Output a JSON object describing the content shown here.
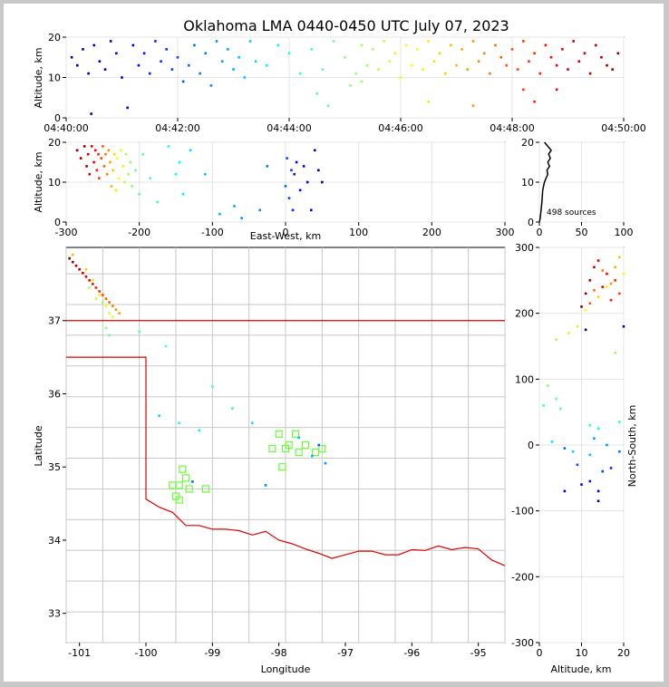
{
  "chart_data": [
    {
      "id": "time-height",
      "type": "scatter",
      "title": "Oklahoma LMA 0440-0450 UTC July 07, 2023",
      "xlabel": "",
      "ylabel": "Altitude, km",
      "x_ticks": [
        "04:40:00",
        "04:42:00",
        "04:44:00",
        "04:46:00",
        "04:48:00",
        "04:50:00"
      ],
      "x_range_minutes": [
        0,
        10
      ],
      "ylim": [
        0,
        20
      ],
      "y_ticks": [
        0,
        10,
        20
      ],
      "grid": true,
      "color_scale": "time (blue to red)",
      "points": [
        [
          0.1,
          15
        ],
        [
          0.2,
          13
        ],
        [
          0.3,
          17
        ],
        [
          0.4,
          11
        ],
        [
          0.45,
          1
        ],
        [
          0.5,
          18
        ],
        [
          0.6,
          14
        ],
        [
          0.7,
          12
        ],
        [
          0.8,
          19
        ],
        [
          0.9,
          16
        ],
        [
          1.0,
          10
        ],
        [
          1.1,
          2.5
        ],
        [
          1.2,
          18
        ],
        [
          1.3,
          13
        ],
        [
          1.4,
          16
        ],
        [
          1.5,
          11
        ],
        [
          1.6,
          19
        ],
        [
          1.7,
          14
        ],
        [
          1.8,
          17
        ],
        [
          1.9,
          12
        ],
        [
          2.0,
          15
        ],
        [
          2.1,
          9
        ],
        [
          2.2,
          13
        ],
        [
          2.3,
          18
        ],
        [
          2.4,
          11
        ],
        [
          2.5,
          16
        ],
        [
          2.6,
          8
        ],
        [
          2.7,
          19
        ],
        [
          2.8,
          14
        ],
        [
          2.9,
          17
        ],
        [
          3.0,
          12
        ],
        [
          3.1,
          15
        ],
        [
          3.2,
          10
        ],
        [
          3.3,
          19
        ],
        [
          3.4,
          14
        ],
        [
          3.6,
          13
        ],
        [
          3.8,
          18
        ],
        [
          4.0,
          16
        ],
        [
          4.2,
          11
        ],
        [
          4.4,
          17
        ],
        [
          4.6,
          12
        ],
        [
          4.8,
          19
        ],
        [
          5.0,
          15
        ],
        [
          5.1,
          8
        ],
        [
          5.2,
          11
        ],
        [
          5.3,
          18
        ],
        [
          5.4,
          13
        ],
        [
          5.5,
          17
        ],
        [
          5.6,
          12
        ],
        [
          5.7,
          19
        ],
        [
          5.8,
          14
        ],
        [
          5.9,
          16
        ],
        [
          6.0,
          10
        ],
        [
          6.1,
          18
        ],
        [
          6.2,
          13
        ],
        [
          6.3,
          17
        ],
        [
          6.4,
          12
        ],
        [
          6.5,
          19
        ],
        [
          6.6,
          14
        ],
        [
          6.7,
          16
        ],
        [
          6.8,
          11
        ],
        [
          6.9,
          18
        ],
        [
          7.0,
          13
        ],
        [
          7.1,
          17
        ],
        [
          7.2,
          12
        ],
        [
          7.3,
          19
        ],
        [
          7.4,
          14
        ],
        [
          7.5,
          16
        ],
        [
          7.6,
          11
        ],
        [
          7.7,
          18
        ],
        [
          7.8,
          15
        ],
        [
          7.9,
          13
        ],
        [
          8.0,
          17
        ],
        [
          8.1,
          12
        ],
        [
          8.2,
          19
        ],
        [
          8.3,
          14
        ],
        [
          8.4,
          16
        ],
        [
          8.5,
          11
        ],
        [
          8.6,
          18
        ],
        [
          8.7,
          15
        ],
        [
          8.8,
          13
        ],
        [
          8.9,
          17
        ],
        [
          9.0,
          12
        ],
        [
          9.1,
          19
        ],
        [
          9.2,
          14
        ],
        [
          9.3,
          16
        ],
        [
          9.4,
          11
        ],
        [
          9.5,
          18
        ],
        [
          9.6,
          15
        ],
        [
          9.7,
          13
        ],
        [
          9.8,
          12
        ],
        [
          9.9,
          16
        ],
        [
          4.5,
          6
        ],
        [
          4.7,
          3
        ],
        [
          5.3,
          9
        ],
        [
          6.5,
          4
        ],
        [
          7.3,
          3
        ],
        [
          8.2,
          7
        ],
        [
          8.4,
          4
        ],
        [
          8.8,
          7
        ]
      ]
    },
    {
      "id": "ew-alt",
      "type": "scatter",
      "xlabel": "East-West, km",
      "ylabel": "Altitude, km",
      "xlim": [
        -300,
        300
      ],
      "ylim": [
        0,
        20
      ],
      "x_ticks": [
        -300,
        -200,
        -100,
        0,
        100,
        200,
        300
      ],
      "y_ticks": [
        0,
        10,
        20
      ],
      "grid": true,
      "points": [
        [
          -285,
          18
        ],
        [
          -280,
          16
        ],
        [
          -275,
          19
        ],
        [
          -272,
          14
        ],
        [
          -270,
          17
        ],
        [
          -268,
          12
        ],
        [
          -265,
          19
        ],
        [
          -262,
          15
        ],
        [
          -260,
          18
        ],
        [
          -258,
          13
        ],
        [
          -256,
          17
        ],
        [
          -255,
          11
        ],
        [
          -252,
          16
        ],
        [
          -250,
          19
        ],
        [
          -248,
          14
        ],
        [
          -246,
          17
        ],
        [
          -244,
          12
        ],
        [
          -242,
          18
        ],
        [
          -240,
          15
        ],
        [
          -238,
          9
        ],
        [
          -236,
          13
        ],
        [
          -234,
          17
        ],
        [
          -232,
          8
        ],
        [
          -230,
          16
        ],
        [
          -228,
          11
        ],
        [
          -225,
          18
        ],
        [
          -222,
          14
        ],
        [
          -220,
          10
        ],
        [
          -218,
          17
        ],
        [
          -215,
          12
        ],
        [
          -212,
          15
        ],
        [
          -210,
          9
        ],
        [
          -205,
          13
        ],
        [
          -200,
          7
        ],
        [
          -195,
          17
        ],
        [
          -185,
          11
        ],
        [
          -175,
          5
        ],
        [
          -160,
          19
        ],
        [
          -150,
          12
        ],
        [
          -145,
          15
        ],
        [
          -140,
          7
        ],
        [
          -130,
          18
        ],
        [
          -110,
          12
        ],
        [
          -90,
          2
        ],
        [
          -70,
          4
        ],
        [
          -60,
          1
        ],
        [
          -35,
          3
        ],
        [
          -25,
          14
        ],
        [
          0,
          9
        ],
        [
          2,
          16
        ],
        [
          5,
          6
        ],
        [
          8,
          13
        ],
        [
          10,
          3
        ],
        [
          12,
          12
        ],
        [
          15,
          15
        ],
        [
          20,
          8
        ],
        [
          25,
          14
        ],
        [
          30,
          10
        ],
        [
          35,
          3
        ],
        [
          40,
          18
        ],
        [
          45,
          13
        ],
        [
          50,
          10
        ]
      ]
    },
    {
      "id": "alt-histogram",
      "type": "line",
      "xlim": [
        0,
        100
      ],
      "ylim": [
        0,
        20
      ],
      "x_ticks": [
        0,
        50,
        100
      ],
      "y_ticks": [
        0,
        10,
        20
      ],
      "grid": true,
      "annotation": "498 sources",
      "points": [
        [
          0,
          0
        ],
        [
          1,
          1
        ],
        [
          2,
          3
        ],
        [
          3,
          5
        ],
        [
          4,
          8
        ],
        [
          5,
          9
        ],
        [
          6,
          10
        ],
        [
          8,
          11
        ],
        [
          10,
          12
        ],
        [
          9,
          13
        ],
        [
          12,
          14
        ],
        [
          10,
          15
        ],
        [
          13,
          16
        ],
        [
          11,
          17
        ],
        [
          14,
          18
        ],
        [
          10,
          19
        ],
        [
          6,
          20
        ]
      ]
    },
    {
      "id": "plan-view",
      "type": "scatter",
      "xlabel": "Longitude",
      "ylabel": "Latitude",
      "xlim": [
        -101.2,
        -94.6
      ],
      "ylim": [
        32.6,
        38.0
      ],
      "x_ticks": [
        -101,
        -100,
        -99,
        -98,
        -97,
        -96,
        -95
      ],
      "y_ticks": [
        33,
        34,
        35,
        36,
        37
      ],
      "grid": false,
      "stations": [
        [
          -98.0,
          35.45
        ],
        [
          -97.85,
          35.3
        ],
        [
          -97.75,
          35.45
        ],
        [
          -97.6,
          35.3
        ],
        [
          -97.45,
          35.2
        ],
        [
          -97.35,
          35.25
        ],
        [
          -97.9,
          35.25
        ],
        [
          -97.95,
          35.0
        ],
        [
          -98.1,
          35.25
        ],
        [
          -97.7,
          35.2
        ],
        [
          -99.45,
          34.97
        ],
        [
          -99.4,
          34.85
        ],
        [
          -99.5,
          34.75
        ],
        [
          -99.35,
          34.7
        ],
        [
          -99.1,
          34.7
        ],
        [
          -99.6,
          34.75
        ],
        [
          -99.55,
          34.6
        ],
        [
          -99.5,
          34.55
        ]
      ],
      "points": [
        [
          -101.15,
          37.85
        ],
        [
          -101.1,
          37.8
        ],
        [
          -101.05,
          37.75
        ],
        [
          -101.0,
          37.7
        ],
        [
          -100.95,
          37.65
        ],
        [
          -100.9,
          37.6
        ],
        [
          -100.85,
          37.55
        ],
        [
          -100.8,
          37.5
        ],
        [
          -100.75,
          37.45
        ],
        [
          -100.7,
          37.4
        ],
        [
          -100.65,
          37.35
        ],
        [
          -100.6,
          37.3
        ],
        [
          -100.55,
          37.25
        ],
        [
          -100.5,
          37.2
        ],
        [
          -100.45,
          37.15
        ],
        [
          -100.4,
          37.1
        ],
        [
          -101.1,
          37.9
        ],
        [
          -100.9,
          37.7
        ],
        [
          -100.8,
          37.55
        ],
        [
          -100.7,
          37.35
        ],
        [
          -100.6,
          37.2
        ],
        [
          -100.55,
          37.1
        ],
        [
          -100.5,
          37.05
        ],
        [
          -100.75,
          37.3
        ],
        [
          -100.85,
          37.45
        ],
        [
          -100.65,
          37.25
        ],
        [
          -100.6,
          36.9
        ],
        [
          -100.55,
          36.8
        ],
        [
          -100.1,
          36.85
        ],
        [
          -99.7,
          36.65
        ],
        [
          -99.0,
          36.1
        ],
        [
          -98.7,
          35.8
        ],
        [
          -99.5,
          35.6
        ],
        [
          -99.2,
          35.5
        ],
        [
          -98.4,
          35.6
        ],
        [
          -99.8,
          35.7
        ],
        [
          -97.7,
          35.4
        ],
        [
          -97.5,
          35.15
        ],
        [
          -97.3,
          35.05
        ],
        [
          -98.2,
          34.75
        ],
        [
          -99.3,
          34.8
        ],
        [
          -97.4,
          35.3
        ]
      ]
    },
    {
      "id": "alt-ns",
      "type": "scatter",
      "xlabel": "Altitude, km",
      "ylabel": "North-South, km",
      "xlim": [
        0,
        20
      ],
      "ylim": [
        -300,
        300
      ],
      "x_ticks": [
        0,
        10,
        20
      ],
      "y_ticks": [
        -300,
        -200,
        -100,
        0,
        100,
        200,
        300
      ],
      "grid": true,
      "points": [
        [
          10,
          210
        ],
        [
          11,
          230
        ],
        [
          12,
          250
        ],
        [
          13,
          270
        ],
        [
          14,
          280
        ],
        [
          15,
          240
        ],
        [
          16,
          260
        ],
        [
          17,
          220
        ],
        [
          18,
          250
        ],
        [
          19,
          230
        ],
        [
          12,
          215
        ],
        [
          13,
          235
        ],
        [
          15,
          265
        ],
        [
          17,
          245
        ],
        [
          18,
          270
        ],
        [
          19,
          285
        ],
        [
          14,
          225
        ],
        [
          16,
          240
        ],
        [
          11,
          205
        ],
        [
          20,
          260
        ],
        [
          9,
          180
        ],
        [
          7,
          170
        ],
        [
          4,
          160
        ],
        [
          18,
          140
        ],
        [
          2,
          90
        ],
        [
          4,
          70
        ],
        [
          5,
          55
        ],
        [
          1,
          60
        ],
        [
          19,
          35
        ],
        [
          12,
          30
        ],
        [
          14,
          25
        ],
        [
          3,
          5
        ],
        [
          8,
          -10
        ],
        [
          12,
          -15
        ],
        [
          13,
          10
        ],
        [
          16,
          0
        ],
        [
          19,
          -10
        ],
        [
          6,
          -5
        ],
        [
          9,
          -30
        ],
        [
          15,
          -40
        ],
        [
          17,
          -35
        ],
        [
          12,
          -55
        ],
        [
          10,
          -60
        ],
        [
          14,
          -70
        ],
        [
          6,
          -70
        ],
        [
          14,
          -85
        ],
        [
          20,
          180
        ],
        [
          11,
          175
        ]
      ]
    }
  ]
}
